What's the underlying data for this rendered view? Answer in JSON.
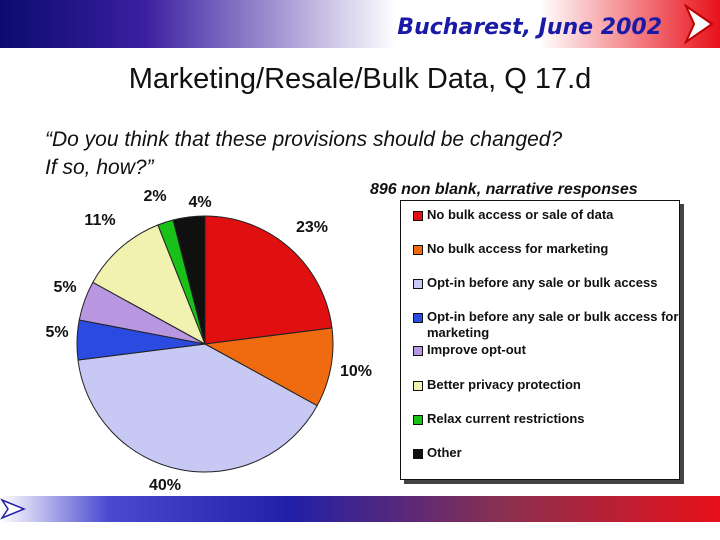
{
  "header": {
    "title": "Bucharest, June 2002",
    "arrow_icon": "arrow-right-icon"
  },
  "slide": {
    "title": "Marketing/Resale/Bulk Data, Q 17.d",
    "question_line1": "“Do you think that these provisions should be changed?",
    "question_line2": "If so, how?”",
    "responses_note": "896 non blank, narrative responses"
  },
  "chart_data": {
    "type": "pie",
    "title": "",
    "legend_position": "right",
    "slices": [
      {
        "label": "No bulk access or sale of data",
        "value": 23,
        "display": "23%",
        "color": "#e01010"
      },
      {
        "label": "No bulk access for marketing",
        "value": 10,
        "display": "10%",
        "color": "#f06a10"
      },
      {
        "label": "Opt-in before any sale or bulk access",
        "value": 40,
        "display": "40%",
        "color": "#c8c8f4"
      },
      {
        "label": "Opt-in before any sale or bulk access for marketing",
        "value": 5,
        "display": "5%",
        "color": "#2a4ae0"
      },
      {
        "label": "Improve opt-out",
        "value": 5,
        "display": "5%",
        "color": "#b896e0"
      },
      {
        "label": "Better privacy protection",
        "value": 11,
        "display": "11%",
        "color": "#f2f2b0"
      },
      {
        "label": "Relax current restrictions",
        "value": 2,
        "display": "2%",
        "color": "#18c018"
      },
      {
        "label": "Other",
        "value": 4,
        "display": "4%",
        "color": "#101010"
      }
    ]
  }
}
